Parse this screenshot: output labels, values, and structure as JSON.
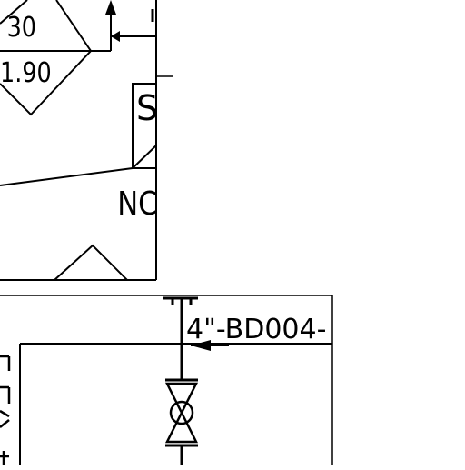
{
  "colors": {
    "background": "#ffffff",
    "line": "#000000"
  },
  "diagram": {
    "labels": {
      "diamond_top": "30",
      "diamond_bottom": "1.90",
      "box_partial": "S",
      "partial_text": "NC",
      "line_tag": "4\"-BD004-"
    },
    "icons": {
      "valve": "gate-valve-icon",
      "flow_arrow": "flow-arrow-icon"
    }
  }
}
